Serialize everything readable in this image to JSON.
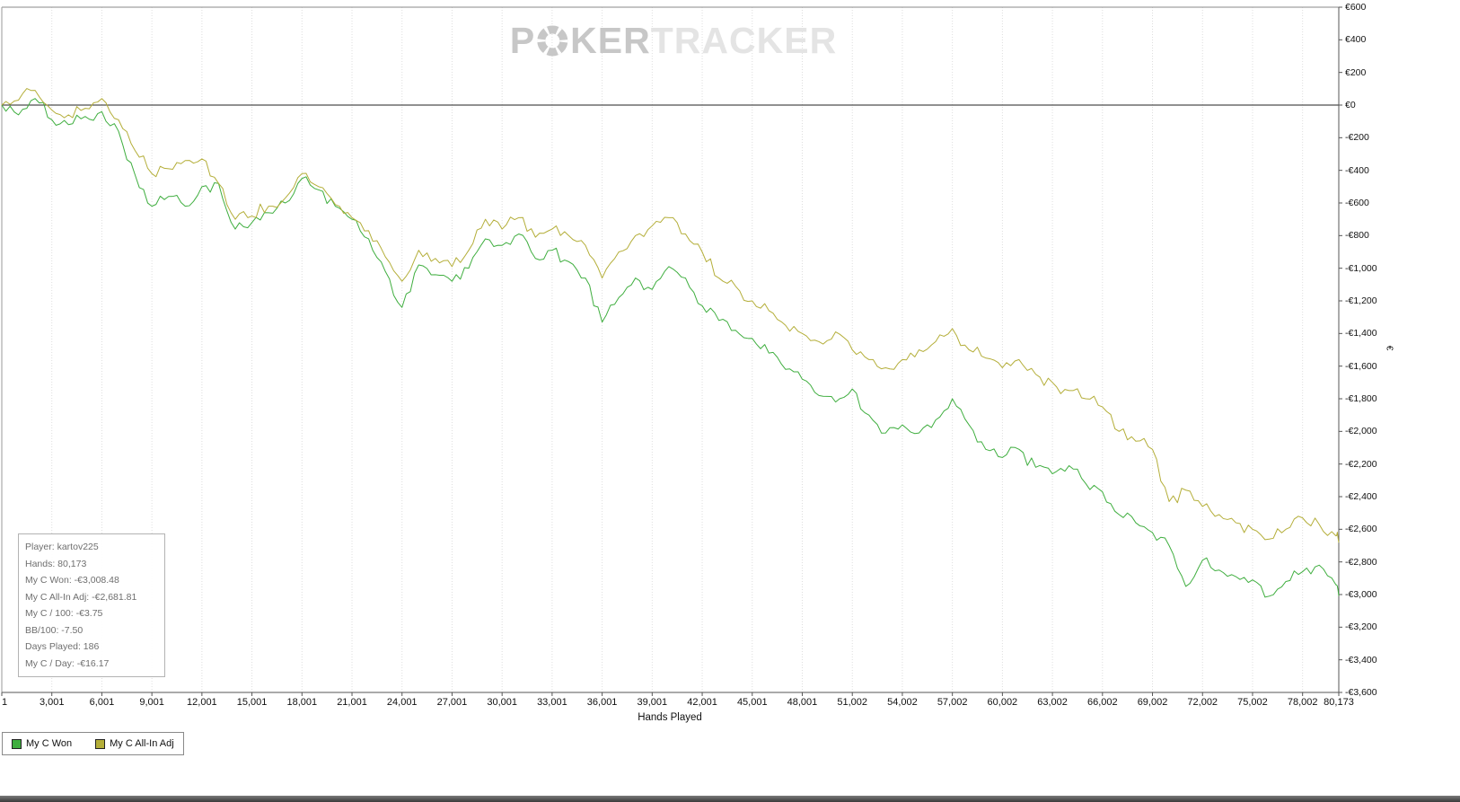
{
  "watermark": {
    "prefix": "P",
    "suffix": "KER",
    "tail": "TRACKER"
  },
  "stats_box": {
    "lines": [
      "Player: kartov225",
      "Hands: 80,173",
      "My C Won: -€3,008.48",
      "My C All-In Adj: -€2,681.81",
      "My C / 100: -€3.75",
      "BB/100: -7.50",
      "Days Played: 186",
      "My C / Day: -€16.17"
    ]
  },
  "axes": {
    "x_title": "Hands Played",
    "y_title": "€",
    "x_ticks": [
      {
        "value": 1,
        "label": "1"
      },
      {
        "value": 3001,
        "label": "3,001"
      },
      {
        "value": 6001,
        "label": "6,001"
      },
      {
        "value": 9001,
        "label": "9,001"
      },
      {
        "value": 12001,
        "label": "12,001"
      },
      {
        "value": 15001,
        "label": "15,001"
      },
      {
        "value": 18001,
        "label": "18,001"
      },
      {
        "value": 21001,
        "label": "21,001"
      },
      {
        "value": 24001,
        "label": "24,001"
      },
      {
        "value": 27001,
        "label": "27,001"
      },
      {
        "value": 30001,
        "label": "30,001"
      },
      {
        "value": 33001,
        "label": "33,001"
      },
      {
        "value": 36001,
        "label": "36,001"
      },
      {
        "value": 39001,
        "label": "39,001"
      },
      {
        "value": 42001,
        "label": "42,001"
      },
      {
        "value": 45001,
        "label": "45,001"
      },
      {
        "value": 48001,
        "label": "48,001"
      },
      {
        "value": 51002,
        "label": "51,002"
      },
      {
        "value": 54002,
        "label": "54,002"
      },
      {
        "value": 57002,
        "label": "57,002"
      },
      {
        "value": 60002,
        "label": "60,002"
      },
      {
        "value": 63002,
        "label": "63,002"
      },
      {
        "value": 66002,
        "label": "66,002"
      },
      {
        "value": 69002,
        "label": "69,002"
      },
      {
        "value": 72002,
        "label": "72,002"
      },
      {
        "value": 75002,
        "label": "75,002"
      },
      {
        "value": 78002,
        "label": "78,002"
      },
      {
        "value": 80173,
        "label": "80,173"
      }
    ],
    "y_ticks": [
      {
        "value": 600,
        "label": "€600"
      },
      {
        "value": 400,
        "label": "€400"
      },
      {
        "value": 200,
        "label": "€200"
      },
      {
        "value": 0,
        "label": "€0"
      },
      {
        "value": -200,
        "label": "-€200"
      },
      {
        "value": -400,
        "label": "-€400"
      },
      {
        "value": -600,
        "label": "-€600"
      },
      {
        "value": -800,
        "label": "-€800"
      },
      {
        "value": -1000,
        "label": "-€1,000"
      },
      {
        "value": -1200,
        "label": "-€1,200"
      },
      {
        "value": -1400,
        "label": "-€1,400"
      },
      {
        "value": -1600,
        "label": "-€1,600"
      },
      {
        "value": -1800,
        "label": "-€1,800"
      },
      {
        "value": -2000,
        "label": "-€2,000"
      },
      {
        "value": -2200,
        "label": "-€2,200"
      },
      {
        "value": -2400,
        "label": "-€2,400"
      },
      {
        "value": -2600,
        "label": "-€2,600"
      },
      {
        "value": -2800,
        "label": "-€2,800"
      },
      {
        "value": -3000,
        "label": "-€3,000"
      },
      {
        "value": -3200,
        "label": "-€3,200"
      },
      {
        "value": -3400,
        "label": "-€3,400"
      },
      {
        "value": -3600,
        "label": "-€3,600"
      }
    ]
  },
  "legend": {
    "items": [
      {
        "label": "My C Won",
        "color": "#3fae3f"
      },
      {
        "label": "My C All-In Adj",
        "color": "#b4ae39"
      }
    ]
  },
  "chart_data": {
    "type": "line",
    "title": "",
    "xlabel": "Hands Played",
    "ylabel": "€",
    "x_range": [
      1,
      80173
    ],
    "ylim": [
      -3600,
      600
    ],
    "grid": "vertical-dotted",
    "legend_position": "bottom-left",
    "zero_line": 0,
    "x": [
      1,
      1000,
      2000,
      3000,
      4000,
      5000,
      6000,
      7000,
      8000,
      9000,
      10000,
      11000,
      12000,
      13000,
      14000,
      15000,
      16000,
      17000,
      18000,
      19000,
      20000,
      21000,
      22000,
      23000,
      24000,
      25000,
      26000,
      27000,
      28000,
      29000,
      30000,
      31000,
      32000,
      33000,
      34000,
      35000,
      36000,
      37000,
      38000,
      39000,
      40000,
      41000,
      42000,
      43000,
      44000,
      45000,
      46000,
      47000,
      48000,
      49000,
      50000,
      51000,
      52000,
      53000,
      54000,
      55000,
      56000,
      57000,
      58000,
      59000,
      60000,
      61000,
      62000,
      63000,
      64000,
      65000,
      66000,
      67000,
      68000,
      69000,
      70000,
      71000,
      72000,
      73000,
      74000,
      75000,
      76000,
      77000,
      78000,
      79000,
      80000,
      80173
    ],
    "series": [
      {
        "name": "My C Won",
        "color": "#3fae3f",
        "final_value": -3008.48,
        "values": [
          0,
          -60,
          40,
          -90,
          -120,
          -70,
          -40,
          -160,
          -430,
          -620,
          -560,
          -620,
          -500,
          -480,
          -760,
          -720,
          -660,
          -600,
          -450,
          -520,
          -620,
          -700,
          -820,
          -1020,
          -1240,
          -980,
          -1040,
          -1080,
          -1000,
          -820,
          -860,
          -790,
          -940,
          -890,
          -960,
          -1060,
          -1330,
          -1180,
          -1060,
          -1130,
          -990,
          -1060,
          -1230,
          -1320,
          -1380,
          -1430,
          -1520,
          -1620,
          -1680,
          -1780,
          -1820,
          -1740,
          -1900,
          -2010,
          -1960,
          -2010,
          -1930,
          -1800,
          -1960,
          -2110,
          -2160,
          -2110,
          -2220,
          -2260,
          -2210,
          -2320,
          -2370,
          -2510,
          -2560,
          -2620,
          -2700,
          -2950,
          -2790,
          -2850,
          -2890,
          -2910,
          -3010,
          -2920,
          -2860,
          -2820,
          -2940,
          -3008.48
        ]
      },
      {
        "name": "My C All-In Adj",
        "color": "#b4ae39",
        "final_value": -2681.81,
        "values": [
          0,
          30,
          90,
          -30,
          -60,
          -20,
          40,
          -90,
          -280,
          -420,
          -390,
          -340,
          -330,
          -480,
          -700,
          -680,
          -620,
          -570,
          -420,
          -500,
          -610,
          -690,
          -770,
          -930,
          -1080,
          -890,
          -940,
          -990,
          -890,
          -700,
          -760,
          -690,
          -810,
          -760,
          -800,
          -860,
          -1060,
          -900,
          -800,
          -740,
          -690,
          -790,
          -900,
          -1060,
          -1110,
          -1200,
          -1260,
          -1350,
          -1400,
          -1450,
          -1390,
          -1500,
          -1560,
          -1610,
          -1560,
          -1500,
          -1450,
          -1370,
          -1500,
          -1550,
          -1610,
          -1560,
          -1650,
          -1700,
          -1750,
          -1800,
          -1850,
          -2000,
          -2060,
          -2110,
          -2430,
          -2360,
          -2460,
          -2510,
          -2560,
          -2600,
          -2660,
          -2600,
          -2530,
          -2570,
          -2640,
          -2681.81
        ]
      }
    ]
  }
}
